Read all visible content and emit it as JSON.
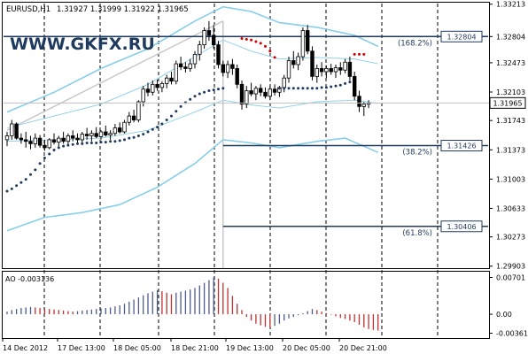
{
  "header": {
    "symbol": "EURUSD,H1",
    "ohlc": "1.31927 1.31999 1.31922 1.31965"
  },
  "watermark": "WWW.GKFX.RU",
  "colors": {
    "candle": "#000000",
    "grid": "#000000",
    "envelope": "#87ceeb",
    "sar_up": "#1f3a5f",
    "sar_down": "#d40000",
    "fib_line": "#1f3a5f",
    "ao_up": "#4d5c8c",
    "ao_down": "#c03030"
  },
  "chart_data": [
    {
      "type": "candlestick",
      "title": "EURUSD,H1",
      "ylim": [
        1.299,
        1.3321
      ],
      "y_ticks": [
        "1.33213",
        "1.32804",
        "1.32473",
        "1.32103",
        "1.31965",
        "1.31743",
        "1.31373",
        "1.31003",
        "1.30633",
        "1.30273",
        "1.29903"
      ],
      "current_price": "1.31965",
      "x_ticks": [
        "14 Dec 2012",
        "17 Dec 13:00",
        "18 Dec 05:00",
        "18 Dec 21:00",
        "19 Dec 13:00",
        "20 Dec 05:00",
        "20 Dec 21:00"
      ],
      "candles": [
        [
          1.315,
          1.316,
          1.3142,
          1.3155
        ],
        [
          1.3155,
          1.3175,
          1.315,
          1.317
        ],
        [
          1.317,
          1.3172,
          1.315,
          1.3152
        ],
        [
          1.3152,
          1.3158,
          1.3145,
          1.315
        ],
        [
          1.315,
          1.316,
          1.314,
          1.3148
        ],
        [
          1.3148,
          1.3155,
          1.3138,
          1.3145
        ],
        [
          1.3145,
          1.3158,
          1.314,
          1.3152
        ],
        [
          1.3152,
          1.3156,
          1.314,
          1.3143
        ],
        [
          1.3143,
          1.315,
          1.3136,
          1.314
        ],
        [
          1.314,
          1.3152,
          1.3138,
          1.315
        ],
        [
          1.315,
          1.3158,
          1.3144,
          1.3147
        ],
        [
          1.3147,
          1.3155,
          1.314,
          1.3152
        ],
        [
          1.3152,
          1.316,
          1.3145,
          1.3148
        ],
        [
          1.3148,
          1.3158,
          1.3142,
          1.3155
        ],
        [
          1.3155,
          1.3162,
          1.3148,
          1.3152
        ],
        [
          1.3152,
          1.3158,
          1.3146,
          1.315
        ],
        [
          1.315,
          1.316,
          1.3145,
          1.3157
        ],
        [
          1.3157,
          1.3165,
          1.315,
          1.3155
        ],
        [
          1.3155,
          1.3162,
          1.3148,
          1.3158
        ],
        [
          1.3158,
          1.3166,
          1.3152,
          1.3154
        ],
        [
          1.3154,
          1.3162,
          1.315,
          1.316
        ],
        [
          1.316,
          1.3168,
          1.3154,
          1.3156
        ],
        [
          1.3156,
          1.3162,
          1.315,
          1.3158
        ],
        [
          1.3158,
          1.317,
          1.3155,
          1.3165
        ],
        [
          1.3165,
          1.3172,
          1.3158,
          1.316
        ],
        [
          1.316,
          1.3175,
          1.3158,
          1.3172
        ],
        [
          1.3172,
          1.3185,
          1.3168,
          1.318
        ],
        [
          1.318,
          1.3188,
          1.3172,
          1.3175
        ],
        [
          1.3175,
          1.32,
          1.3172,
          1.3198
        ],
        [
          1.3198,
          1.3218,
          1.3192,
          1.3214
        ],
        [
          1.3214,
          1.3222,
          1.3205,
          1.321
        ],
        [
          1.321,
          1.3225,
          1.3206,
          1.322
        ],
        [
          1.322,
          1.3226,
          1.3212,
          1.3216
        ],
        [
          1.3216,
          1.3224,
          1.321,
          1.3221
        ],
        [
          1.3221,
          1.3232,
          1.3215,
          1.3228
        ],
        [
          1.3228,
          1.3236,
          1.322,
          1.3224
        ],
        [
          1.3224,
          1.325,
          1.322,
          1.3246
        ],
        [
          1.3246,
          1.3255,
          1.3238,
          1.3242
        ],
        [
          1.3242,
          1.3248,
          1.3235,
          1.324
        ],
        [
          1.324,
          1.3252,
          1.3236,
          1.3246
        ],
        [
          1.3246,
          1.3262,
          1.324,
          1.3258
        ],
        [
          1.3258,
          1.3275,
          1.325,
          1.327
        ],
        [
          1.327,
          1.3292,
          1.3265,
          1.3288
        ],
        [
          1.3288,
          1.33,
          1.3275,
          1.3282
        ],
        [
          1.3282,
          1.3295,
          1.3265,
          1.327
        ],
        [
          1.327,
          1.3275,
          1.324,
          1.3245
        ],
        [
          1.3245,
          1.325,
          1.323,
          1.3235
        ],
        [
          1.3235,
          1.325,
          1.3228,
          1.3245
        ],
        [
          1.3245,
          1.3252,
          1.3232,
          1.324
        ],
        [
          1.324,
          1.3245,
          1.3215,
          1.322
        ],
        [
          1.322,
          1.3225,
          1.3188,
          1.3195
        ],
        [
          1.3195,
          1.3218,
          1.319,
          1.3212
        ],
        [
          1.3212,
          1.3222,
          1.3205,
          1.3208
        ],
        [
          1.3208,
          1.3218,
          1.32,
          1.3215
        ],
        [
          1.3215,
          1.322,
          1.3205,
          1.321
        ],
        [
          1.321,
          1.3216,
          1.3202,
          1.3205
        ],
        [
          1.3205,
          1.3218,
          1.32,
          1.3214
        ],
        [
          1.3214,
          1.322,
          1.3206,
          1.321
        ],
        [
          1.321,
          1.3218,
          1.3204,
          1.3216
        ],
        [
          1.3216,
          1.3232,
          1.321,
          1.3228
        ],
        [
          1.3228,
          1.3255,
          1.3222,
          1.325
        ],
        [
          1.325,
          1.3262,
          1.324,
          1.3245
        ],
        [
          1.3245,
          1.326,
          1.3238,
          1.3255
        ],
        [
          1.3255,
          1.3292,
          1.325,
          1.3288
        ],
        [
          1.3288,
          1.3295,
          1.3258,
          1.3262
        ],
        [
          1.3262,
          1.3268,
          1.3225,
          1.323
        ],
        [
          1.323,
          1.3245,
          1.3222,
          1.324
        ],
        [
          1.324,
          1.3248,
          1.323,
          1.3236
        ],
        [
          1.3236,
          1.3244,
          1.3228,
          1.324
        ],
        [
          1.324,
          1.3246,
          1.3232,
          1.3236
        ],
        [
          1.3236,
          1.3245,
          1.3228,
          1.3241
        ],
        [
          1.3241,
          1.3248,
          1.3232,
          1.3238
        ],
        [
          1.3238,
          1.3252,
          1.3234,
          1.3248
        ],
        [
          1.3248,
          1.3255,
          1.3225,
          1.323
        ],
        [
          1.323,
          1.3236,
          1.32,
          1.3205
        ],
        [
          1.3205,
          1.3212,
          1.3185,
          1.3192
        ],
        [
          1.3192,
          1.3198,
          1.318,
          1.3195
        ],
        [
          1.3195,
          1.32,
          1.319,
          1.31965
        ]
      ],
      "sar": [
        [
          0,
          1.3085
        ],
        [
          1,
          1.3088
        ],
        [
          2,
          1.3092
        ],
        [
          3,
          1.3096
        ],
        [
          4,
          1.31
        ],
        [
          5,
          1.3106
        ],
        [
          6,
          1.3112
        ],
        [
          7,
          1.312
        ],
        [
          8,
          1.3127
        ],
        [
          9,
          1.3132
        ],
        [
          10,
          1.3137
        ],
        [
          11,
          1.314
        ],
        [
          12,
          1.3142
        ],
        [
          13,
          1.3143
        ],
        [
          14,
          1.3144
        ],
        [
          15,
          1.3145
        ],
        [
          16,
          1.3145
        ],
        [
          17,
          1.3146
        ],
        [
          18,
          1.3146
        ],
        [
          19,
          1.3146
        ],
        [
          20,
          1.3147
        ],
        [
          21,
          1.3147
        ],
        [
          22,
          1.3148
        ],
        [
          23,
          1.3148
        ],
        [
          24,
          1.3149
        ],
        [
          25,
          1.315
        ],
        [
          26,
          1.3152
        ],
        [
          27,
          1.3153
        ],
        [
          28,
          1.3155
        ],
        [
          29,
          1.3157
        ],
        [
          30,
          1.316
        ],
        [
          31,
          1.3163
        ],
        [
          32,
          1.3166
        ],
        [
          33,
          1.317
        ],
        [
          34,
          1.3175
        ],
        [
          35,
          1.318
        ],
        [
          36,
          1.3186
        ],
        [
          37,
          1.3192
        ],
        [
          38,
          1.3197
        ],
        [
          39,
          1.3201
        ],
        [
          40,
          1.3205
        ],
        [
          41,
          1.3208
        ],
        [
          42,
          1.321
        ],
        [
          43,
          1.3212
        ],
        [
          44,
          1.3213
        ],
        [
          45,
          1.3214
        ],
        [
          46,
          1.3215
        ],
        [
          50,
          1.3278
        ],
        [
          51,
          1.3277
        ],
        [
          52,
          1.3276
        ],
        [
          53,
          1.3274
        ],
        [
          54,
          1.3272
        ],
        [
          55,
          1.3268
        ],
        [
          56,
          1.3262
        ],
        [
          57,
          1.3254
        ],
        [
          58,
          1.3215
        ],
        [
          59,
          1.3215
        ],
        [
          60,
          1.3215
        ],
        [
          61,
          1.3215
        ],
        [
          62,
          1.3215
        ],
        [
          63,
          1.3215
        ],
        [
          64,
          1.3215
        ],
        [
          65,
          1.3215
        ],
        [
          66,
          1.3215
        ],
        [
          67,
          1.3216
        ],
        [
          68,
          1.3216
        ],
        [
          69,
          1.3217
        ],
        [
          70,
          1.3218
        ],
        [
          71,
          1.3219
        ],
        [
          72,
          1.3221
        ],
        [
          73,
          1.3223
        ],
        [
          74,
          1.3258
        ],
        [
          75,
          1.3258
        ],
        [
          76,
          1.3258
        ]
      ],
      "sar_down_start": 50,
      "sar_down_end": 57,
      "sar_down2_start": 74,
      "envelopes": {
        "upper_outer": [
          [
            0,
            1.3185
          ],
          [
            10,
            1.321
          ],
          [
            20,
            1.324
          ],
          [
            30,
            1.3265
          ],
          [
            40,
            1.33
          ],
          [
            46,
            1.3318
          ],
          [
            52,
            1.3312
          ],
          [
            58,
            1.3298
          ],
          [
            66,
            1.3292
          ],
          [
            74,
            1.3282
          ],
          [
            79,
            1.3268
          ]
        ],
        "upper_inner": [
          [
            0,
            1.3165
          ],
          [
            10,
            1.318
          ],
          [
            20,
            1.3195
          ],
          [
            30,
            1.322
          ],
          [
            40,
            1.3255
          ],
          [
            46,
            1.3276
          ],
          [
            52,
            1.3262
          ],
          [
            58,
            1.3252
          ],
          [
            66,
            1.3254
          ],
          [
            74,
            1.3252
          ],
          [
            79,
            1.3246
          ]
        ],
        "lower_inner": [
          [
            0,
            1.3148
          ],
          [
            10,
            1.315
          ],
          [
            20,
            1.3152
          ],
          [
            30,
            1.3162
          ],
          [
            40,
            1.3185
          ],
          [
            46,
            1.32
          ],
          [
            52,
            1.3194
          ],
          [
            58,
            1.319
          ],
          [
            66,
            1.3198
          ],
          [
            74,
            1.32
          ],
          [
            79,
            1.3196
          ]
        ],
        "lower_outer": [
          [
            0,
            1.3035
          ],
          [
            8,
            1.3052
          ],
          [
            16,
            1.3058
          ],
          [
            24,
            1.3068
          ],
          [
            32,
            1.309
          ],
          [
            40,
            1.312
          ],
          [
            46,
            1.315
          ],
          [
            52,
            1.3146
          ],
          [
            58,
            1.314
          ],
          [
            66,
            1.3148
          ],
          [
            72,
            1.3152
          ],
          [
            79,
            1.3134
          ]
        ]
      },
      "fibonacci": [
        {
          "label": "(168.2%)",
          "price": "1.32804",
          "value": 1.32804
        },
        {
          "label": "(38.2%)",
          "price": "1.31426",
          "value": 1.31426
        },
        {
          "label": "(61.8%)",
          "price": "1.30406",
          "value": 1.30406
        }
      ],
      "vline_index": 46,
      "trendline": {
        "from": [
          0,
          1.3162
        ],
        "to": [
          46,
          1.33
        ]
      }
    },
    {
      "type": "histogram",
      "title": "AO -0.003136",
      "ylim": [
        -0.0042,
        0.0076
      ],
      "y_ticks": [
        "0.00701",
        "0.00",
        "-0.00361"
      ],
      "values": [
        0.0005,
        0.0008,
        0.001,
        0.0012,
        0.0013,
        0.0014,
        0.0013,
        0.0012,
        0.0011,
        0.001,
        0.0009,
        0.0008,
        0.0007,
        0.0006,
        0.0005,
        0.0006,
        0.0007,
        0.0008,
        0.0009,
        0.001,
        0.0011,
        0.0012,
        0.0013,
        0.0015,
        0.0017,
        0.002,
        0.0024,
        0.0028,
        0.0032,
        0.0036,
        0.004,
        0.0043,
        0.0046,
        0.0044,
        0.0041,
        0.0038,
        0.0041,
        0.0043,
        0.0045,
        0.0047,
        0.005,
        0.0055,
        0.006,
        0.0065,
        0.007,
        0.0068,
        0.006,
        0.005,
        0.0035,
        0.002,
        0.0008,
        -0.0005,
        -0.0012,
        -0.0018,
        -0.0021,
        -0.0024,
        -0.0025,
        -0.0022,
        -0.0018,
        -0.0012,
        -0.0008,
        -0.0005,
        -0.0002,
        0.0002,
        0.0006,
        0.001,
        0.0008,
        0.0005,
        0.0002,
        -0.0001,
        -0.0004,
        -0.0007,
        -0.0009,
        -0.0012,
        -0.0015,
        -0.002,
        -0.0025,
        -0.0028,
        -0.003,
        -0.0031
      ]
    }
  ]
}
